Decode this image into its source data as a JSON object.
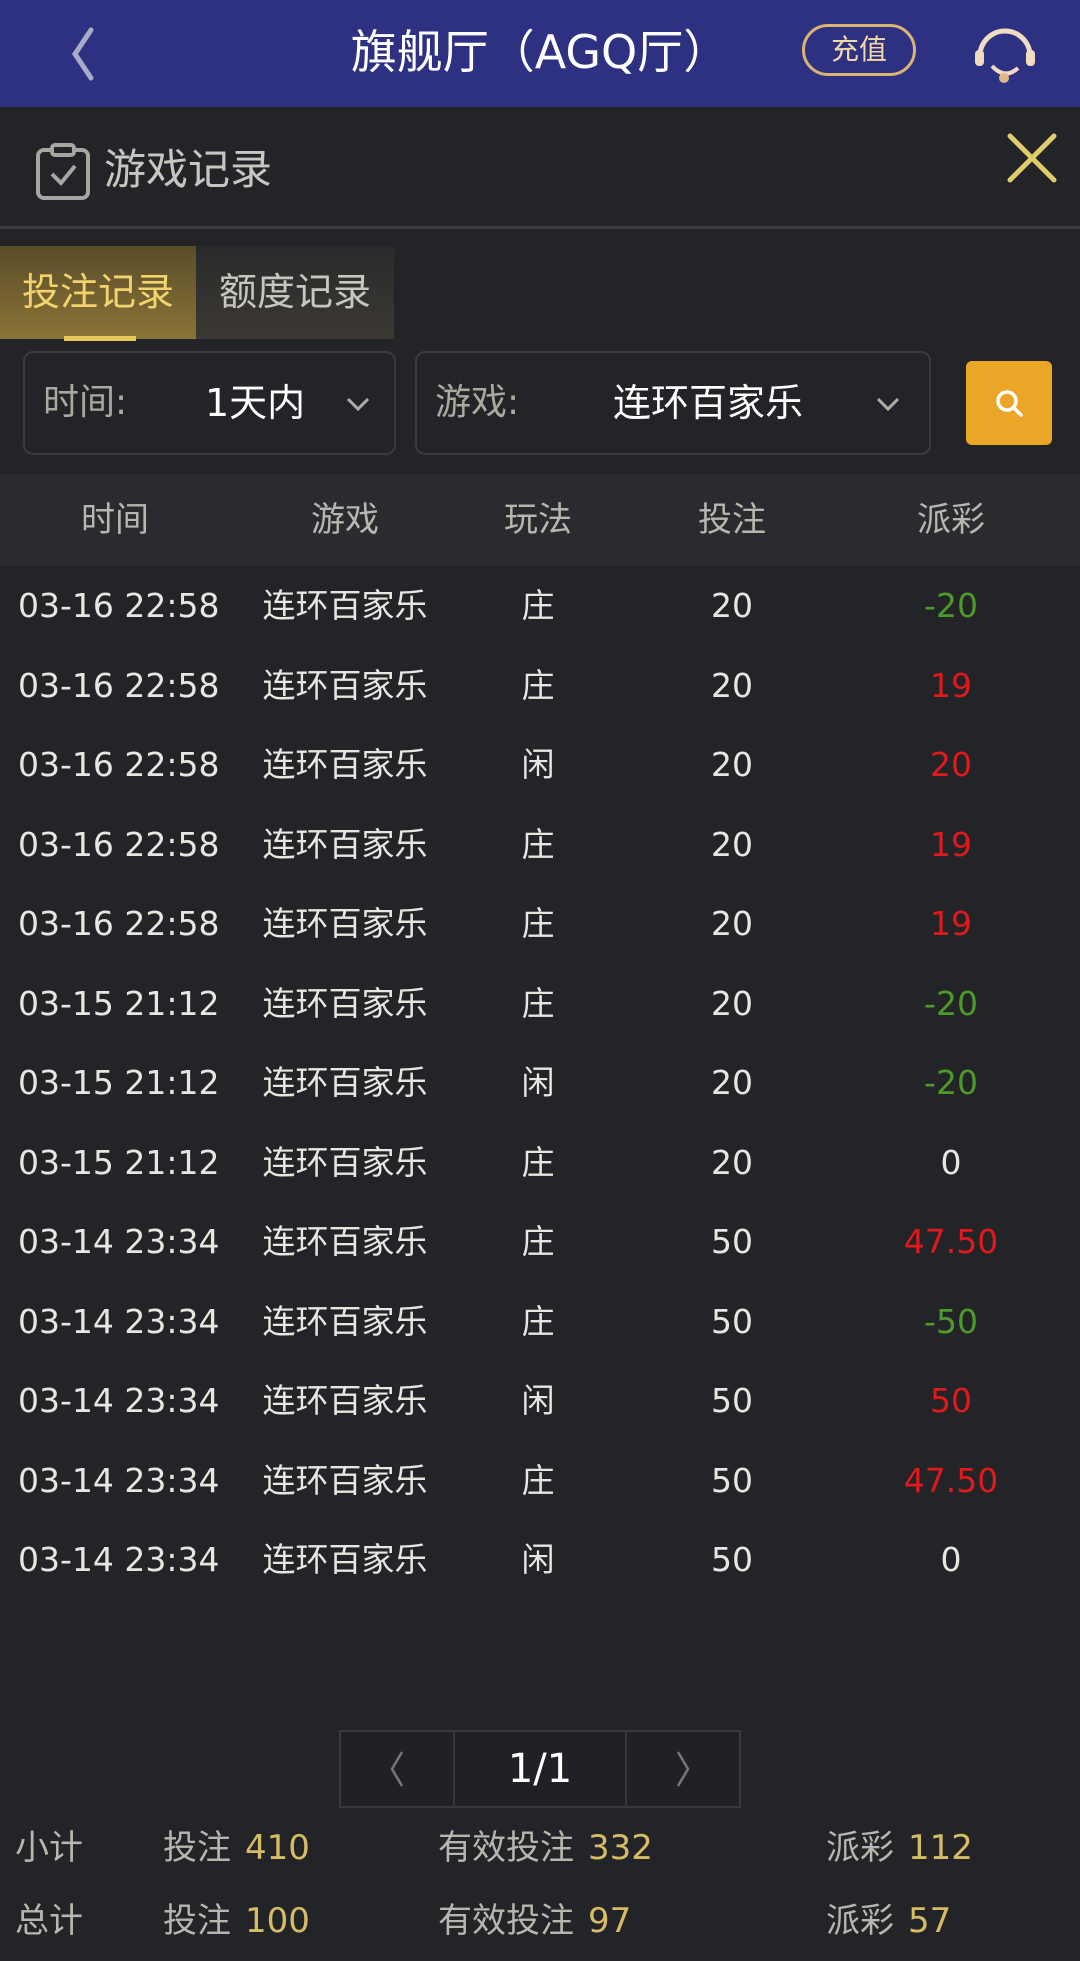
{
  "header": {
    "title": "旗舰厅（AGQ厅）",
    "recharge_label": "充值",
    "icons": [
      "back-chevron-icon",
      "customer-service-headset-icon"
    ],
    "bg_color": "#2e3082"
  },
  "panel": {
    "title": "游戏记录",
    "icons": [
      "clipboard-check-icon",
      "close-icon"
    ]
  },
  "tabs": [
    {
      "label": "投注记录",
      "active": true
    },
    {
      "label": "额度记录",
      "active": false
    }
  ],
  "filters": {
    "time": {
      "label": "时间:",
      "value": "1天内"
    },
    "game": {
      "label": "游戏:",
      "value": "连环百家乐"
    },
    "search_icon": "search-icon",
    "accent": "#eba628"
  },
  "table": {
    "columns": [
      "时间",
      "游戏",
      "玩法",
      "投注",
      "派彩"
    ],
    "rows": [
      [
        "03-16 22:58",
        "连环百家乐",
        "庄",
        "20",
        "-20"
      ],
      [
        "03-16 22:58",
        "连环百家乐",
        "庄",
        "20",
        "19"
      ],
      [
        "03-16 22:58",
        "连环百家乐",
        "闲",
        "20",
        "20"
      ],
      [
        "03-16 22:58",
        "连环百家乐",
        "庄",
        "20",
        "19"
      ],
      [
        "03-16 22:58",
        "连环百家乐",
        "庄",
        "20",
        "19"
      ],
      [
        "03-15 21:12",
        "连环百家乐",
        "庄",
        "20",
        "-20"
      ],
      [
        "03-15 21:12",
        "连环百家乐",
        "闲",
        "20",
        "-20"
      ],
      [
        "03-15 21:12",
        "连环百家乐",
        "庄",
        "20",
        "0"
      ],
      [
        "03-14 23:34",
        "连环百家乐",
        "庄",
        "50",
        "47.50"
      ],
      [
        "03-14 23:34",
        "连环百家乐",
        "庄",
        "50",
        "-50"
      ],
      [
        "03-14 23:34",
        "连环百家乐",
        "闲",
        "50",
        "50"
      ],
      [
        "03-14 23:34",
        "连环百家乐",
        "庄",
        "50",
        "47.50"
      ],
      [
        "03-14 23:34",
        "连环百家乐",
        "闲",
        "50",
        "0"
      ]
    ],
    "colors": {
      "win": "#e0191c",
      "loss": "#4d9a2a",
      "zero": "#e8e6e0"
    }
  },
  "pagination": {
    "page": "1/1"
  },
  "summary": {
    "subtotal": {
      "label": "小计",
      "bet_label": "投注",
      "bet": "410",
      "valid_label": "有效投注",
      "valid": "332",
      "payout_label": "派彩",
      "payout": "112"
    },
    "total": {
      "label": "总计",
      "bet_label": "投注",
      "bet": "100",
      "valid_label": "有效投注",
      "valid": "97",
      "payout_label": "派彩",
      "payout": "57"
    }
  }
}
